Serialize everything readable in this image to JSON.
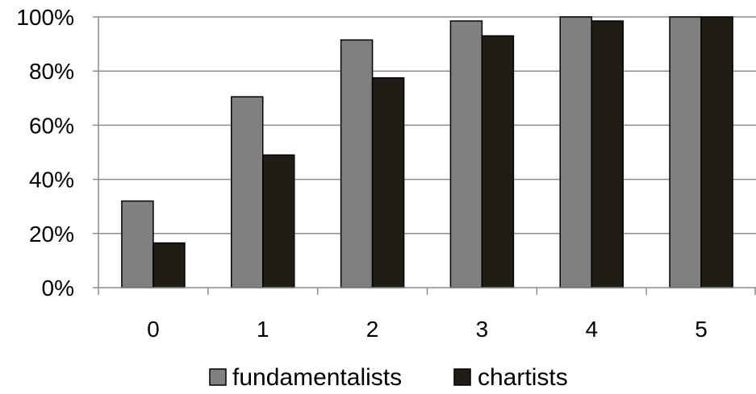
{
  "chart_data": {
    "type": "bar",
    "categories": [
      "0",
      "1",
      "2",
      "3",
      "4",
      "5"
    ],
    "series": [
      {
        "name": "fundamentalists",
        "values": [
          32,
          70.5,
          91.5,
          98.5,
          100,
          100
        ],
        "color": "#808080"
      },
      {
        "name": "chartists",
        "values": [
          16.5,
          49,
          77.5,
          93,
          98.5,
          100
        ],
        "color": "#1f1d14"
      }
    ],
    "ylim": [
      0,
      100
    ],
    "yticks": [
      0,
      20,
      40,
      60,
      80,
      100
    ],
    "ytick_labels": [
      "0%",
      "20%",
      "40%",
      "60%",
      "80%",
      "100%"
    ],
    "grid": true,
    "legend_position": "bottom",
    "title": "",
    "xlabel": "",
    "ylabel": ""
  }
}
